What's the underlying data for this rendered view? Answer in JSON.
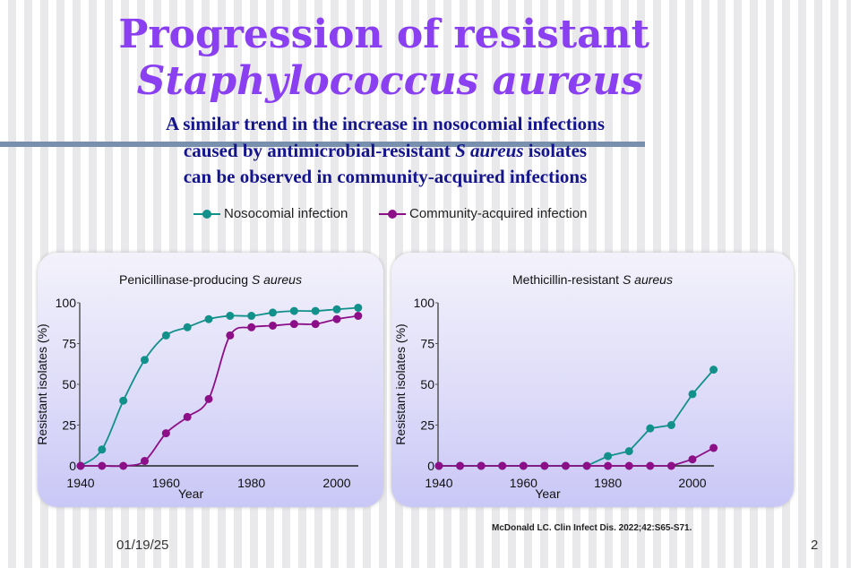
{
  "title_line1": "Progression of resistant",
  "title_line2": "Staphylococcus aureus",
  "subtitle": {
    "line1": "A similar trend in the increase in nosocomial infections",
    "line2_a": "caused by antimicrobial-resistant ",
    "line2_b": "S aureus",
    "line2_c": " isolates",
    "line3": "can be observed in community-acquired infections"
  },
  "legend": [
    {
      "label": "Nosocomial infection",
      "color": "#12908a"
    },
    {
      "label": "Community-acquired infection",
      "color": "#8c0f88"
    }
  ],
  "chart_data": [
    {
      "type": "line",
      "title_a": "Penicillinase-producing ",
      "title_b": "S aureus",
      "xlabel": "Year",
      "ylabel": "Resistant isolates (%)",
      "xlim": [
        1940,
        2005
      ],
      "ylim": [
        0,
        100
      ],
      "xticks": [
        1940,
        1960,
        1980,
        2000
      ],
      "yticks": [
        0,
        25,
        50,
        75,
        100
      ],
      "grid": false,
      "x": [
        1940,
        1945,
        1950,
        1955,
        1960,
        1965,
        1970,
        1975,
        1980,
        1985,
        1990,
        1995,
        2000,
        2005
      ],
      "series": [
        {
          "name": "Nosocomial infection",
          "color": "#12908a",
          "values": [
            0,
            10,
            40,
            65,
            80,
            85,
            90,
            92,
            92,
            94,
            95,
            95,
            96,
            97
          ]
        },
        {
          "name": "Community-acquired infection",
          "color": "#8c0f88",
          "values": [
            0,
            0,
            0,
            3,
            20,
            30,
            41,
            80,
            85,
            86,
            87,
            87,
            90,
            92
          ]
        }
      ]
    },
    {
      "type": "line",
      "title_a": "Methicillin-resistant ",
      "title_b": "S aureus",
      "xlabel": "Year",
      "ylabel": "Resistant isolates (%)",
      "xlim": [
        1940,
        2005
      ],
      "ylim": [
        0,
        100
      ],
      "xticks": [
        1940,
        1960,
        1980,
        2000
      ],
      "yticks": [
        0,
        25,
        50,
        75,
        100
      ],
      "grid": false,
      "x": [
        1940,
        1945,
        1950,
        1955,
        1960,
        1965,
        1970,
        1975,
        1980,
        1985,
        1990,
        1995,
        2000,
        2005
      ],
      "series": [
        {
          "name": "Nosocomial infection",
          "color": "#12908a",
          "values": [
            0,
            0,
            0,
            0,
            0,
            0,
            0,
            0,
            6,
            9,
            23,
            25,
            44,
            59
          ]
        },
        {
          "name": "Community-acquired infection",
          "color": "#8c0f88",
          "values": [
            0,
            0,
            0,
            0,
            0,
            0,
            0,
            0,
            0,
            0,
            0,
            0,
            4,
            11
          ]
        }
      ]
    }
  ],
  "footnote": "McDonald LC. Clin Infect Dis. 2022;42:S65-S71.",
  "date": "01/19/25",
  "slide_number": "2"
}
